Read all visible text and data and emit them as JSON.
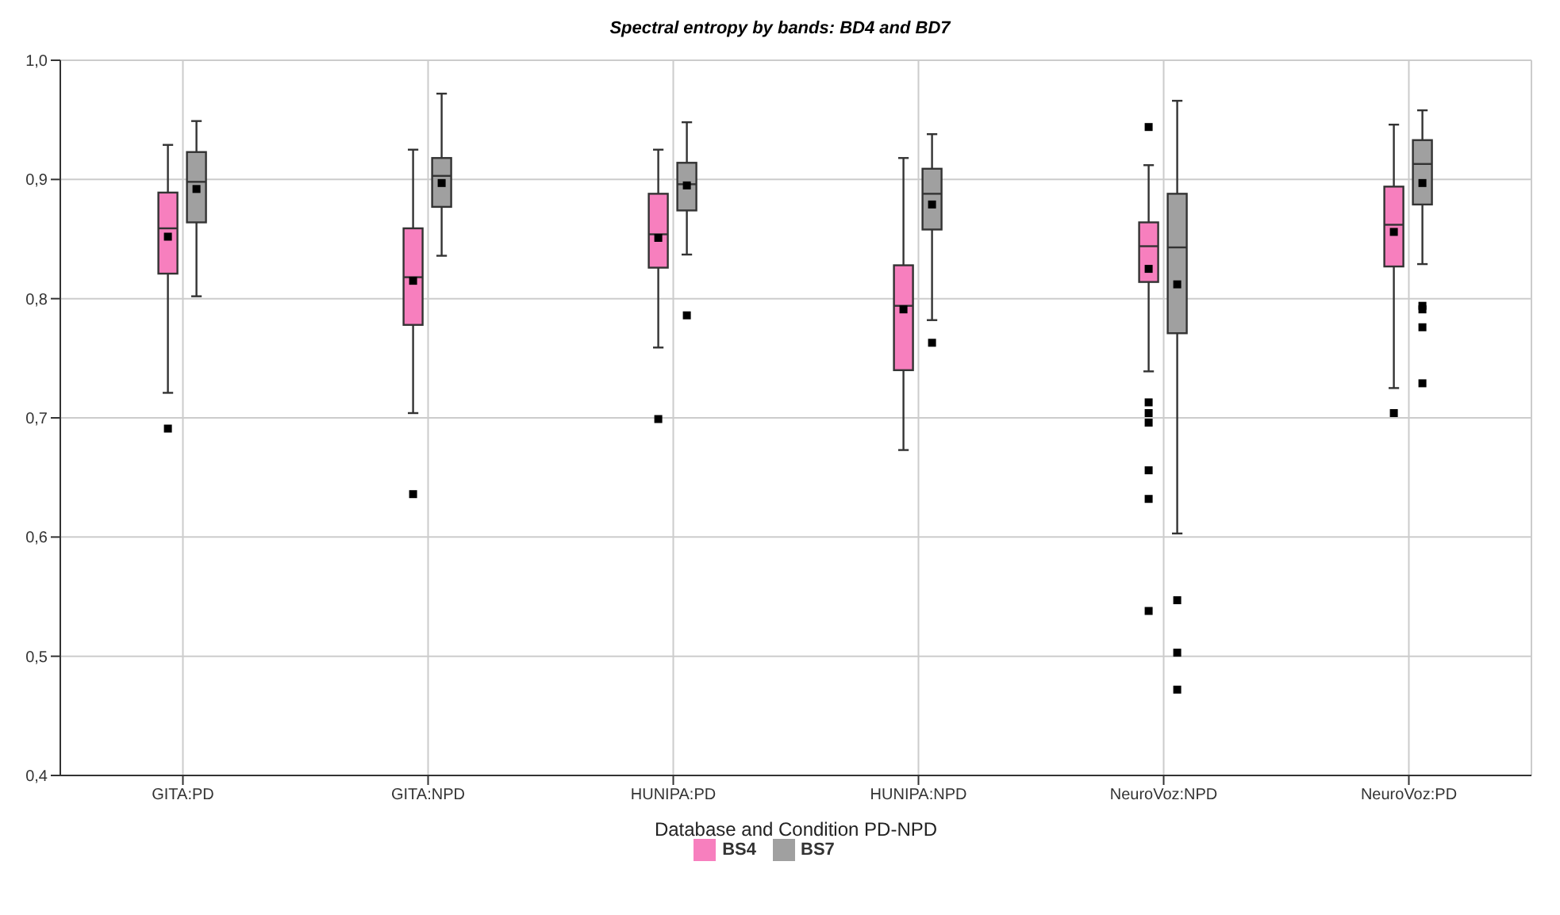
{
  "chart_data": {
    "type": "box",
    "title": "Spectral entropy by bands: BD4 and BD7",
    "xlabel": "Database and Condition PD-NPD",
    "categories": [
      "GITA:PD",
      "GITA:NPD",
      "HUNIPA:PD",
      "HUNIPA:NPD",
      "NeuroVoz:NPD",
      "NeuroVoz:PD"
    ],
    "ylim": [
      0.4,
      1.0
    ],
    "yticks": [
      {
        "value": 0.4,
        "label": "0,4"
      },
      {
        "value": 0.5,
        "label": "0,5"
      },
      {
        "value": 0.6,
        "label": "0,6"
      },
      {
        "value": 0.7,
        "label": "0,7"
      },
      {
        "value": 0.8,
        "label": "0,8"
      },
      {
        "value": 0.9,
        "label": "0,9"
      },
      {
        "value": 1.0,
        "label": "1,0"
      }
    ],
    "grid": true,
    "legend": "bottom",
    "series": [
      {
        "name": "BS4",
        "color": "#f77fbe",
        "boxes": [
          {
            "low": 0.721,
            "q1": 0.821,
            "median": 0.859,
            "q3": 0.889,
            "high": 0.929,
            "mean": 0.852,
            "outliers": [
              0.691
            ]
          },
          {
            "low": 0.704,
            "q1": 0.778,
            "median": 0.818,
            "q3": 0.859,
            "high": 0.925,
            "mean": 0.815,
            "outliers": [
              0.636
            ]
          },
          {
            "low": 0.759,
            "q1": 0.826,
            "median": 0.854,
            "q3": 0.888,
            "high": 0.925,
            "mean": 0.851,
            "outliers": [
              0.699
            ]
          },
          {
            "low": 0.673,
            "q1": 0.74,
            "median": 0.794,
            "q3": 0.828,
            "high": 0.918,
            "mean": 0.791
          },
          {
            "low": 0.739,
            "q1": 0.814,
            "median": 0.844,
            "q3": 0.864,
            "high": 0.912,
            "mean": 0.825,
            "outliers": [
              0.944,
              0.713,
              0.704,
              0.696,
              0.656,
              0.632,
              0.538
            ]
          },
          {
            "low": 0.725,
            "q1": 0.827,
            "median": 0.862,
            "q3": 0.894,
            "high": 0.946,
            "mean": 0.856,
            "outliers": [
              0.704
            ]
          }
        ]
      },
      {
        "name": "BS7",
        "color": "#a0a0a0",
        "boxes": [
          {
            "low": 0.802,
            "q1": 0.864,
            "median": 0.898,
            "q3": 0.923,
            "high": 0.949,
            "mean": 0.892
          },
          {
            "low": 0.836,
            "q1": 0.877,
            "median": 0.903,
            "q3": 0.918,
            "high": 0.972,
            "mean": 0.897
          },
          {
            "low": 0.837,
            "q1": 0.874,
            "median": 0.896,
            "q3": 0.914,
            "high": 0.948,
            "mean": 0.895,
            "outliers": [
              0.786
            ]
          },
          {
            "low": 0.782,
            "q1": 0.858,
            "median": 0.888,
            "q3": 0.909,
            "high": 0.938,
            "mean": 0.879,
            "outliers": [
              0.763
            ]
          },
          {
            "low": 0.603,
            "q1": 0.771,
            "median": 0.843,
            "q3": 0.888,
            "high": 0.966,
            "mean": 0.812,
            "outliers": [
              0.547,
              0.503,
              0.472
            ]
          },
          {
            "low": 0.829,
            "q1": 0.879,
            "median": 0.913,
            "q3": 0.933,
            "high": 0.958,
            "mean": 0.897,
            "outliers": [
              0.794,
              0.791,
              0.776,
              0.729
            ]
          }
        ]
      }
    ]
  }
}
